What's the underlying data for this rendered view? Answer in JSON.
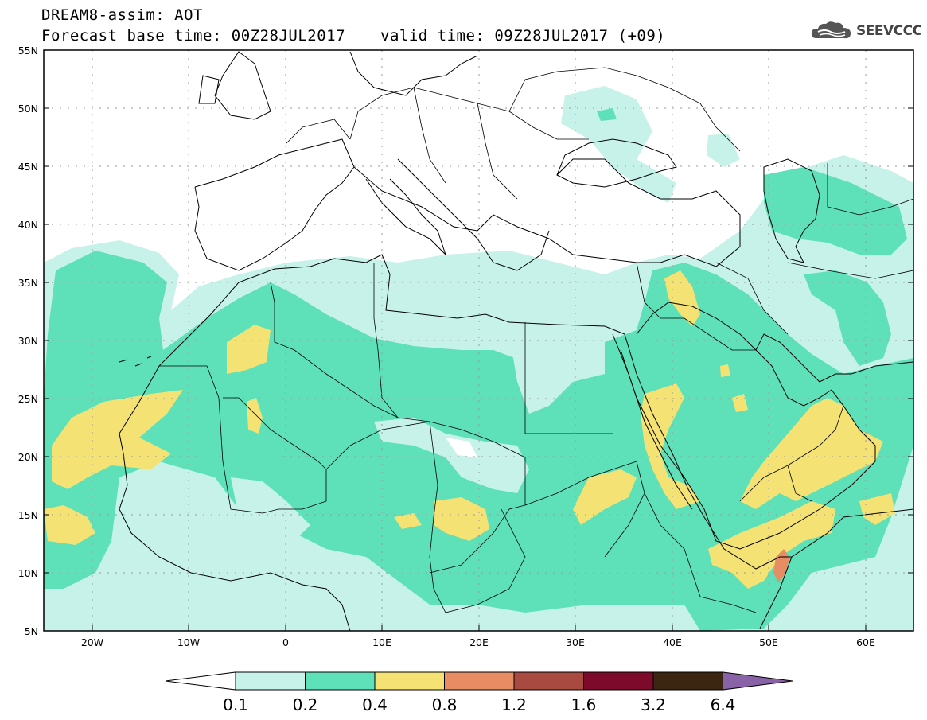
{
  "header": {
    "model_line": "DREAM8-assim: AOT",
    "base_time_label": "Forecast base time: 00Z28JUL2017",
    "valid_time_label": "valid time: 09Z28JUL2017 (+09)"
  },
  "logo": {
    "text": "SEEVCCC",
    "icon": "cloud-logo-icon"
  },
  "axes": {
    "lat_labels": [
      "55N",
      "50N",
      "45N",
      "40N",
      "35N",
      "30N",
      "25N",
      "20N",
      "15N",
      "10N",
      "5N"
    ],
    "lon_labels": [
      "20W",
      "10W",
      "0",
      "10E",
      "20E",
      "30E",
      "40E",
      "50E",
      "60E"
    ]
  },
  "colorbar": {
    "labels": [
      "0.1",
      "0.2",
      "0.4",
      "0.8",
      "1.2",
      "1.6",
      "3.2",
      "6.4"
    ],
    "colors": [
      "#ffffff",
      "#c7f2ea",
      "#5ee0b8",
      "#f5e275",
      "#e88d63",
      "#a84a3f",
      "#7d0a2a",
      "#3b2612",
      "#8a62a8"
    ]
  },
  "map_layers": {
    "aot_0_1_color": "#c7f2ea",
    "aot_0_2_color": "#5ee0b8",
    "aot_0_4_color": "#f5e275",
    "aot_0_8_color": "#e88d63"
  }
}
